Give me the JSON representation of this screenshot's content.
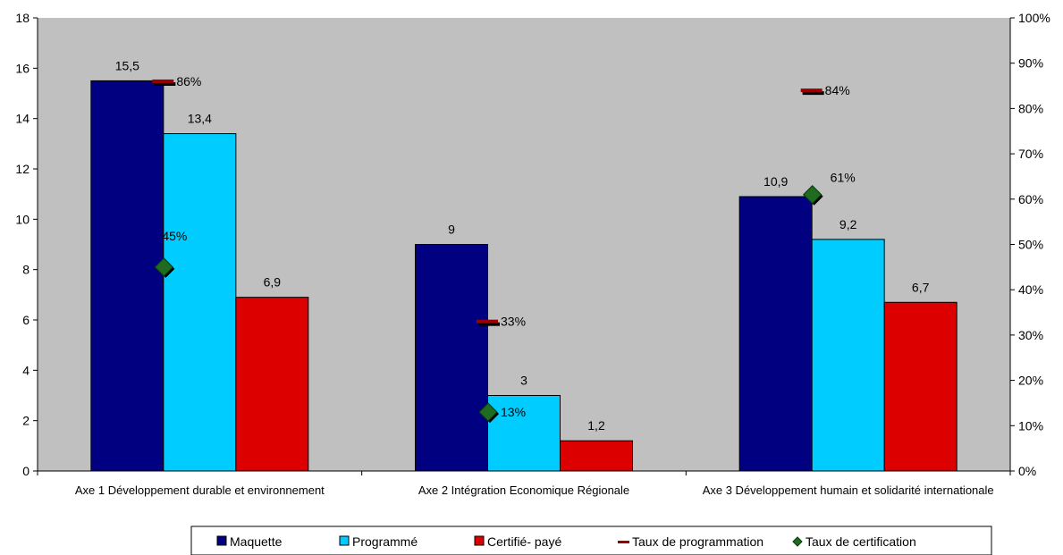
{
  "chart_data": {
    "type": "bar",
    "categories": [
      "Axe 1 Développement durable et environnement",
      "Axe 2 Intégration Economique Régionale",
      "Axe 3 Développement humain et solidarité internationale"
    ],
    "series": [
      {
        "name": "Maquette",
        "type": "bar",
        "axis": "left",
        "color": "#000080",
        "values": [
          15.5,
          9,
          10.9
        ],
        "labels": [
          "15,5",
          "9",
          "10,9"
        ]
      },
      {
        "name": "Programmé",
        "type": "bar",
        "axis": "left",
        "color": "#00CCFF",
        "values": [
          13.4,
          3,
          9.2
        ],
        "labels": [
          "13,4",
          "3",
          "9,2"
        ]
      },
      {
        "name": "Certifié- payé",
        "type": "bar",
        "axis": "left",
        "color": "#DD0000",
        "values": [
          6.9,
          1.2,
          6.7
        ],
        "labels": [
          "6,9",
          "1,2",
          "6,7"
        ]
      },
      {
        "name": "Taux de programmation",
        "type": "marker-dash",
        "axis": "right",
        "color": "#990000",
        "values": [
          0.86,
          0.33,
          0.84
        ],
        "labels": [
          "86%",
          "33%",
          "84%"
        ]
      },
      {
        "name": "Taux de certification",
        "type": "marker-diamond",
        "axis": "right",
        "color": "#1F6B1F",
        "values": [
          0.45,
          0.13,
          0.61
        ],
        "labels": [
          "45%",
          "13%",
          "61%"
        ]
      }
    ],
    "ylim": [
      0,
      18
    ],
    "yticks": [
      "0",
      "2",
      "4",
      "6",
      "8",
      "10",
      "12",
      "14",
      "16",
      "18"
    ],
    "y2lim": [
      0,
      1
    ],
    "y2ticks": [
      "0%",
      "10%",
      "20%",
      "30%",
      "40%",
      "50%",
      "60%",
      "70%",
      "80%",
      "90%",
      "100%"
    ],
    "plot_background": "#C0C0C0",
    "grid": false,
    "legend_position": "bottom"
  }
}
